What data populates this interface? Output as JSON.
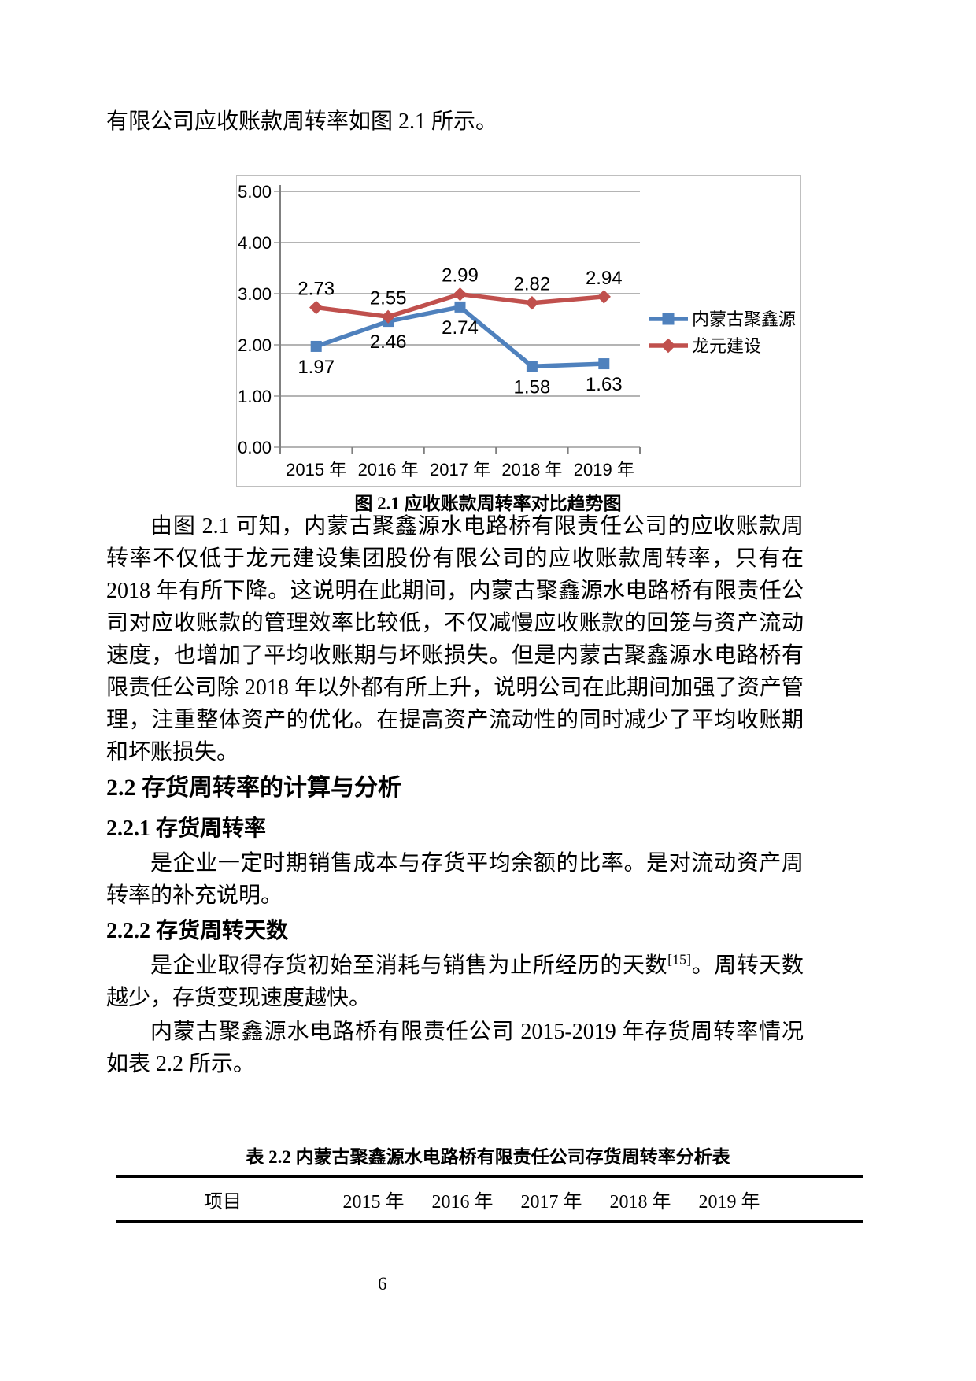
{
  "page": {
    "number": "6"
  },
  "intro_line": "有限公司应收账款周转率如图 2.1 所示。",
  "figure": {
    "caption": "图 2.1  应收账款周转率对比趋势图"
  },
  "chart_data": {
    "type": "line",
    "categories": [
      "2015 年",
      "2016 年",
      "2017 年",
      "2018 年",
      "2019 年"
    ],
    "series": [
      {
        "name": "内蒙古聚鑫源",
        "color": "#4F81BD",
        "marker": "square",
        "values": [
          1.97,
          2.46,
          2.74,
          1.58,
          1.63
        ],
        "labels": [
          "1.97",
          "2.46",
          "2.74",
          "1.58",
          "1.63"
        ],
        "label_position": "below"
      },
      {
        "name": "龙元建设",
        "color": "#C0504D",
        "marker": "diamond",
        "values": [
          2.73,
          2.55,
          2.99,
          2.82,
          2.94
        ],
        "labels": [
          "2.73",
          "2.55",
          "2.99",
          "2.82",
          "2.94"
        ],
        "label_position": "above"
      }
    ],
    "ylim": [
      0,
      5
    ],
    "ytick_labels": [
      "5.00",
      "4.00",
      "3.00",
      "2.00",
      "1.00",
      "0.00"
    ],
    "grid": true,
    "legend_position": "right",
    "grid_color": "#9b9b9b",
    "axis_color": "#808080",
    "label_color": "#000000"
  },
  "paragraphs": {
    "p1": "由图 2.1 可知，内蒙古聚鑫源水电路桥有限责任公司的应收账款周转率不仅低于龙元建设集团股份有限公司的应收账款周转率，只有在 2018 年有所下降。这说明在此期间，内蒙古聚鑫源水电路桥有限责任公司对应收账款的管理效率比较低，不仅减慢应收账款的回笼与资产流动速度，也增加了平均收账期与坏账损失。但是内蒙古聚鑫源水电路桥有限责任公司除 2018 年以外都有所上升，说明公司在此期间加强了资产管理，注重整体资产的优化。在提高资产流动性的同时减少了平均收账期和坏账损失。"
  },
  "sections": {
    "s22": "2.2 存货周转率的计算与分析",
    "s221": "2.2.1 存货周转率",
    "s221_text": "是企业一定时期销售成本与存货平均余额的比率。是对流动资产周转率的补充说明。",
    "s222": "2.2.2 存货周转天数",
    "s222_text_pre": "是企业取得存货初始至消耗与销售为止所经历的天数",
    "s222_sup": "[15]",
    "s222_text_post": "。周转天数越少，存货变现速度越快。",
    "table_intro": "内蒙古聚鑫源水电路桥有限责任公司 2015-2019 年存货周转率情况如表 2.2 所示。"
  },
  "table": {
    "caption": "表 2.2 内蒙古聚鑫源水电路桥有限责任公司存货周转率分析表",
    "headers": [
      "项目",
      "2015 年",
      "2016 年",
      "2017 年",
      "2018 年",
      "2019 年"
    ]
  }
}
